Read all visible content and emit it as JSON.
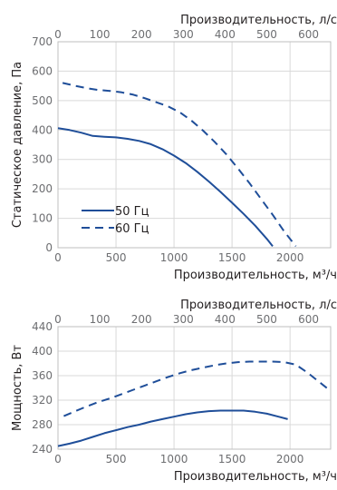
{
  "chart_data": [
    {
      "type": "line",
      "top_axis": {
        "label": "Производительность, л/с",
        "range": [
          0,
          653
        ],
        "ticks": [
          0,
          100,
          200,
          300,
          400,
          500,
          600
        ]
      },
      "xlabel": "Производительность, м³/ч",
      "ylabel": "Статическое давление, Па",
      "xlim": [
        0,
        2350
      ],
      "ylim": [
        0,
        700
      ],
      "xticks": [
        0,
        500,
        1000,
        1500,
        2000
      ],
      "yticks": [
        0,
        100,
        200,
        300,
        400,
        500,
        600,
        700
      ],
      "grid": true,
      "legend": "left-center",
      "series": [
        {
          "name": "50 Гц",
          "style": "solid",
          "color": "#1f4e99",
          "points": [
            [
              0,
              406
            ],
            [
              100,
              400
            ],
            [
              200,
              391
            ],
            [
              300,
              380
            ],
            [
              400,
              377
            ],
            [
              500,
              375
            ],
            [
              600,
              370
            ],
            [
              700,
              363
            ],
            [
              800,
              352
            ],
            [
              900,
              335
            ],
            [
              1000,
              313
            ],
            [
              1100,
              288
            ],
            [
              1200,
              258
            ],
            [
              1300,
              225
            ],
            [
              1400,
              190
            ],
            [
              1500,
              153
            ],
            [
              1600,
              115
            ],
            [
              1700,
              75
            ],
            [
              1800,
              30
            ],
            [
              1850,
              5
            ]
          ]
        },
        {
          "name": "60 Гц",
          "style": "dashed",
          "color": "#1f4e99",
          "points": [
            [
              40,
              560
            ],
            [
              150,
              550
            ],
            [
              250,
              542
            ],
            [
              350,
              536
            ],
            [
              450,
              533
            ],
            [
              550,
              528
            ],
            [
              650,
              520
            ],
            [
              750,
              508
            ],
            [
              850,
              494
            ],
            [
              950,
              480
            ],
            [
              1050,
              460
            ],
            [
              1150,
              432
            ],
            [
              1250,
              398
            ],
            [
              1350,
              360
            ],
            [
              1450,
              318
            ],
            [
              1550,
              270
            ],
            [
              1650,
              220
            ],
            [
              1750,
              166
            ],
            [
              1850,
              112
            ],
            [
              1950,
              55
            ],
            [
              2050,
              5
            ]
          ]
        }
      ]
    },
    {
      "type": "line",
      "top_axis": {
        "label": "Производительность, л/с",
        "range": [
          0,
          653
        ],
        "ticks": [
          0,
          100,
          200,
          300,
          400,
          500,
          600
        ]
      },
      "xlabel": "Производительность, м³/ч",
      "ylabel": "Мощность, Вт",
      "xlim": [
        0,
        2350
      ],
      "ylim": [
        240,
        440
      ],
      "xticks": [
        0,
        500,
        1000,
        1500,
        2000
      ],
      "yticks": [
        240,
        280,
        320,
        360,
        400,
        440
      ],
      "grid": true,
      "legend": "none",
      "series": [
        {
          "name": "50 Гц",
          "style": "solid",
          "color": "#1f4e99",
          "points": [
            [
              0,
              245
            ],
            [
              100,
              249
            ],
            [
              200,
              254
            ],
            [
              300,
              260
            ],
            [
              400,
              266
            ],
            [
              500,
              271
            ],
            [
              600,
              276
            ],
            [
              700,
              280
            ],
            [
              800,
              285
            ],
            [
              900,
              289
            ],
            [
              1000,
              293
            ],
            [
              1100,
              297
            ],
            [
              1200,
              300
            ],
            [
              1300,
              302
            ],
            [
              1400,
              303
            ],
            [
              1500,
              303
            ],
            [
              1600,
              303
            ],
            [
              1700,
              301
            ],
            [
              1800,
              298
            ],
            [
              1900,
              293
            ],
            [
              1980,
              289
            ]
          ]
        },
        {
          "name": "60 Гц",
          "style": "dashed",
          "color": "#1f4e99",
          "points": [
            [
              50,
              294
            ],
            [
              150,
              302
            ],
            [
              250,
              310
            ],
            [
              350,
              317
            ],
            [
              450,
              323
            ],
            [
              550,
              330
            ],
            [
              650,
              337
            ],
            [
              750,
              344
            ],
            [
              850,
              351
            ],
            [
              950,
              358
            ],
            [
              1050,
              364
            ],
            [
              1150,
              369
            ],
            [
              1250,
              373
            ],
            [
              1350,
              377
            ],
            [
              1450,
              380
            ],
            [
              1550,
              382
            ],
            [
              1650,
              383
            ],
            [
              1750,
              383
            ],
            [
              1850,
              383
            ],
            [
              1950,
              382
            ],
            [
              2050,
              378
            ],
            [
              2150,
              365
            ],
            [
              2250,
              350
            ],
            [
              2330,
              338
            ]
          ]
        }
      ]
    }
  ]
}
